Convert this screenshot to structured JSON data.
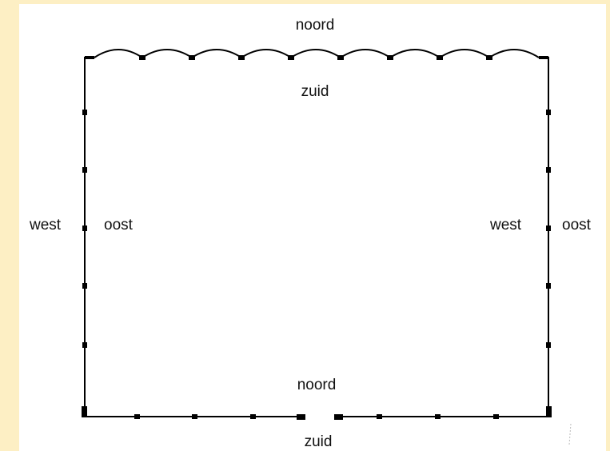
{
  "colors": {
    "background": "#FDEFC4",
    "canvas": "#FFFFFF",
    "wall": "#000000"
  },
  "labels": {
    "top_outer": "noord",
    "top_inner": "zuid",
    "left_outer": "west",
    "left_inner": "oost",
    "right_inner": "west",
    "right_outer": "oost",
    "bottom_inner": "noord",
    "bottom_outer": "zuid"
  }
}
